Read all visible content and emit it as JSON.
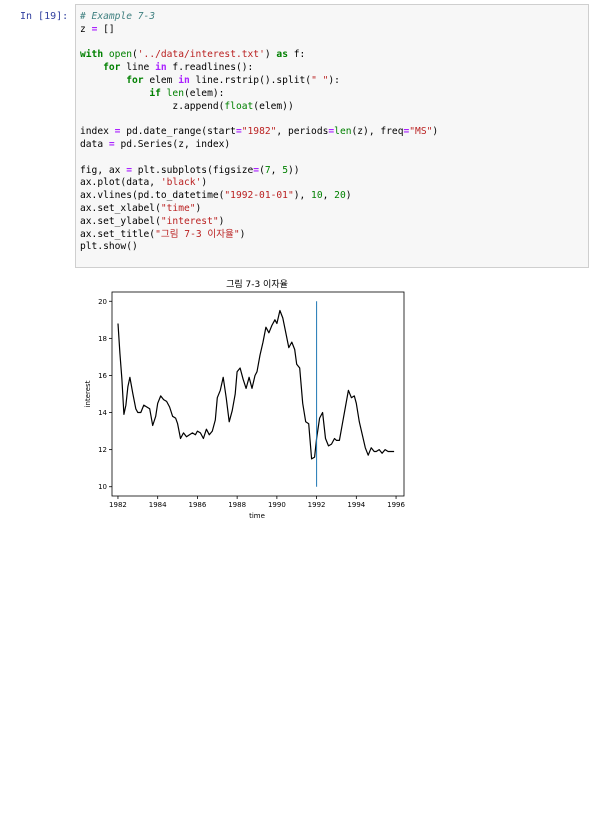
{
  "cell": {
    "prompt": "In [19]:",
    "code_lines": [
      [
        {
          "t": "# Example 7-3",
          "c": "com"
        }
      ],
      [
        {
          "t": "z "
        },
        {
          "t": "=",
          "c": "op"
        },
        {
          "t": " []"
        }
      ],
      [],
      [
        {
          "t": "with",
          "c": "kw"
        },
        {
          "t": " "
        },
        {
          "t": "open",
          "c": "bi"
        },
        {
          "t": "("
        },
        {
          "t": "'../data/interest.txt'",
          "c": "str"
        },
        {
          "t": ") "
        },
        {
          "t": "as",
          "c": "kw"
        },
        {
          "t": " f:"
        }
      ],
      [
        {
          "t": "    "
        },
        {
          "t": "for",
          "c": "kw"
        },
        {
          "t": " line "
        },
        {
          "t": "in",
          "c": "op"
        },
        {
          "t": " f.readlines():"
        }
      ],
      [
        {
          "t": "        "
        },
        {
          "t": "for",
          "c": "kw"
        },
        {
          "t": " elem "
        },
        {
          "t": "in",
          "c": "op"
        },
        {
          "t": " line.rstrip().split("
        },
        {
          "t": "\" \"",
          "c": "str"
        },
        {
          "t": "):"
        }
      ],
      [
        {
          "t": "            "
        },
        {
          "t": "if",
          "c": "kw"
        },
        {
          "t": " "
        },
        {
          "t": "len",
          "c": "bi"
        },
        {
          "t": "(elem):"
        }
      ],
      [
        {
          "t": "                z.append("
        },
        {
          "t": "float",
          "c": "bi"
        },
        {
          "t": "(elem))"
        }
      ],
      [],
      [
        {
          "t": "index "
        },
        {
          "t": "=",
          "c": "op"
        },
        {
          "t": " pd.date_range(start"
        },
        {
          "t": "=",
          "c": "op"
        },
        {
          "t": "\"1982\"",
          "c": "str"
        },
        {
          "t": ", periods"
        },
        {
          "t": "=",
          "c": "op"
        },
        {
          "t": "len",
          "c": "bi"
        },
        {
          "t": "(z), freq"
        },
        {
          "t": "=",
          "c": "op"
        },
        {
          "t": "\"MS\"",
          "c": "str"
        },
        {
          "t": ")"
        }
      ],
      [
        {
          "t": "data "
        },
        {
          "t": "=",
          "c": "op"
        },
        {
          "t": " pd.Series(z, index)"
        }
      ],
      [],
      [
        {
          "t": "fig, ax "
        },
        {
          "t": "=",
          "c": "op"
        },
        {
          "t": " plt.subplots(figsize"
        },
        {
          "t": "=",
          "c": "op"
        },
        {
          "t": "("
        },
        {
          "t": "7",
          "c": "num"
        },
        {
          "t": ", "
        },
        {
          "t": "5",
          "c": "num"
        },
        {
          "t": "))"
        }
      ],
      [
        {
          "t": "ax.plot(data, "
        },
        {
          "t": "'black'",
          "c": "str"
        },
        {
          "t": ")"
        }
      ],
      [
        {
          "t": "ax.vlines(pd.to_datetime("
        },
        {
          "t": "\"1992-01-01\"",
          "c": "str"
        },
        {
          "t": "), "
        },
        {
          "t": "10",
          "c": "num"
        },
        {
          "t": ", "
        },
        {
          "t": "20",
          "c": "num"
        },
        {
          "t": ")"
        }
      ],
      [
        {
          "t": "ax.set_xlabel("
        },
        {
          "t": "\"time\"",
          "c": "str"
        },
        {
          "t": ")"
        }
      ],
      [
        {
          "t": "ax.set_ylabel("
        },
        {
          "t": "\"interest\"",
          "c": "str"
        },
        {
          "t": ")"
        }
      ],
      [
        {
          "t": "ax.set_title("
        },
        {
          "t": "\"그림 7-3 이자율\"",
          "c": "str"
        },
        {
          "t": ")"
        }
      ],
      [
        {
          "t": "plt.show()"
        }
      ]
    ]
  },
  "chart_data": {
    "type": "line",
    "title": "그림 7-3 이자율",
    "xlabel": "time",
    "ylabel": "interest",
    "xlim": [
      1981.7,
      1996.4
    ],
    "ylim": [
      9.5,
      20.5
    ],
    "xticks": [
      1982,
      1984,
      1986,
      1988,
      1990,
      1992,
      1994,
      1996
    ],
    "yticks": [
      10,
      12,
      14,
      16,
      18,
      20
    ],
    "line_color": "#000000",
    "vline": {
      "x": 1992.0,
      "ymin": 10,
      "ymax": 20,
      "color": "#1f77b4"
    },
    "series": [
      {
        "x": [
          1982.0,
          1982.1,
          1982.2,
          1982.3,
          1982.4,
          1982.5,
          1982.6,
          1982.75,
          1982.9,
          1983.0,
          1983.15,
          1983.3,
          1983.45,
          1983.6,
          1983.75,
          1983.9,
          1984.0,
          1984.15,
          1984.3,
          1984.45,
          1984.6,
          1984.75,
          1984.9,
          1985.0,
          1985.15,
          1985.3,
          1985.45,
          1985.6,
          1985.75,
          1985.9,
          1986.0,
          1986.15,
          1986.3,
          1986.45,
          1986.6,
          1986.75,
          1986.9,
          1987.0,
          1987.15,
          1987.3,
          1987.45,
          1987.6,
          1987.75,
          1987.9,
          1988.0,
          1988.15,
          1988.3,
          1988.45,
          1988.6,
          1988.75,
          1988.9,
          1989.0,
          1989.15,
          1989.3,
          1989.45,
          1989.6,
          1989.75,
          1989.9,
          1990.0,
          1990.15,
          1990.3,
          1990.45,
          1990.6,
          1990.75,
          1990.9,
          1991.0,
          1991.15,
          1991.3,
          1991.45,
          1991.6,
          1991.75,
          1991.9,
          1992.0,
          1992.15,
          1992.3,
          1992.45,
          1992.6,
          1992.75,
          1992.9,
          1993.0,
          1993.15,
          1993.3,
          1993.45,
          1993.6,
          1993.75,
          1993.9,
          1994.0,
          1994.15,
          1994.3,
          1994.45,
          1994.6,
          1994.75,
          1994.9,
          1995.0,
          1995.15,
          1995.3,
          1995.45,
          1995.6,
          1995.75,
          1995.9
        ],
        "y": [
          18.8,
          17.2,
          15.8,
          13.9,
          14.4,
          15.4,
          15.9,
          15.0,
          14.2,
          14.0,
          14.0,
          14.4,
          14.3,
          14.2,
          13.3,
          13.8,
          14.5,
          14.9,
          14.7,
          14.6,
          14.3,
          13.8,
          13.7,
          13.4,
          12.6,
          12.9,
          12.7,
          12.8,
          12.9,
          12.8,
          13.0,
          12.9,
          12.6,
          13.1,
          12.8,
          13.0,
          13.6,
          14.8,
          15.2,
          15.9,
          14.8,
          13.5,
          14.1,
          15.0,
          16.2,
          16.4,
          15.8,
          15.3,
          15.9,
          15.3,
          16.0,
          16.2,
          17.1,
          17.8,
          18.6,
          18.3,
          18.7,
          19.0,
          18.8,
          19.5,
          19.1,
          18.3,
          17.5,
          17.8,
          17.4,
          16.6,
          16.4,
          14.5,
          13.5,
          13.4,
          11.5,
          11.6,
          12.6,
          13.7,
          14.0,
          12.6,
          12.2,
          12.3,
          12.6,
          12.5,
          12.5,
          13.4,
          14.3,
          15.2,
          14.8,
          14.9,
          14.5,
          13.5,
          12.8,
          12.1,
          11.7,
          12.1,
          11.9,
          11.9,
          12.0,
          11.8,
          12.0,
          11.9,
          11.9,
          11.9
        ]
      }
    ]
  }
}
